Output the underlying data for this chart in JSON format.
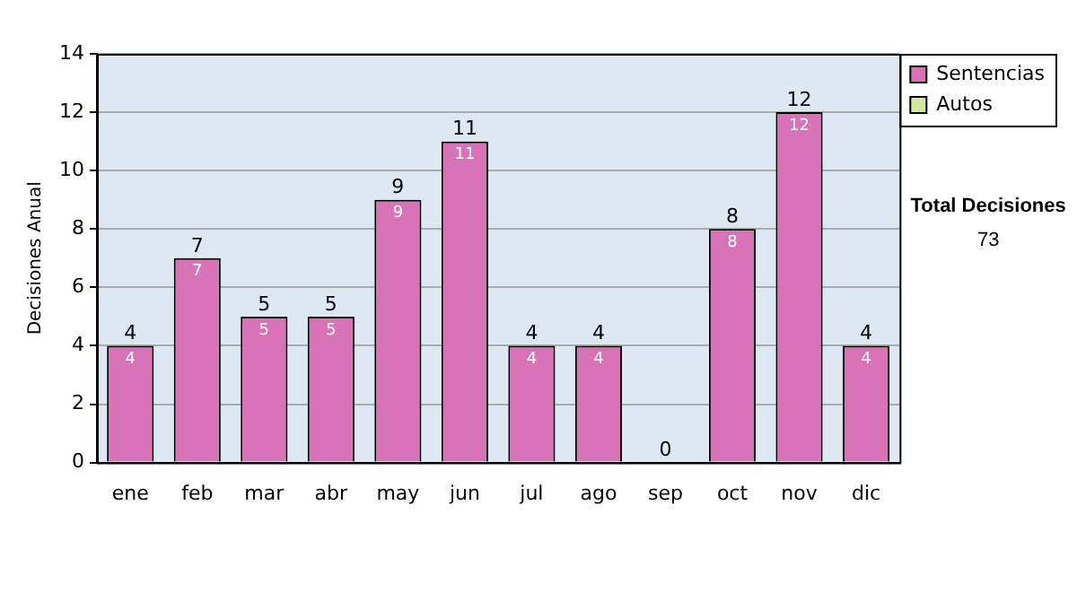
{
  "chart_data": {
    "type": "bar",
    "ylabel": "Decisiones Anual",
    "categories": [
      "ene",
      "feb",
      "mar",
      "abr",
      "may",
      "jun",
      "jul",
      "ago",
      "sep",
      "oct",
      "nov",
      "dic"
    ],
    "stacked": true,
    "series": [
      {
        "name": "Sentencias",
        "color": "#d873b8",
        "values": [
          4,
          7,
          5,
          5,
          9,
          11,
          4,
          4,
          0,
          8,
          12,
          4
        ],
        "value_labels": [
          "4",
          "7",
          "5",
          "5",
          "9",
          "11",
          "4",
          "4",
          null,
          "8",
          "12",
          "4"
        ]
      },
      {
        "name": "Autos",
        "color": "#d4e8a0",
        "values": [
          0,
          0,
          0,
          0,
          0,
          0,
          0,
          0,
          0,
          0,
          0,
          0
        ]
      }
    ],
    "totals": [
      "4",
      "7",
      "5",
      "5",
      "9",
      "11",
      "4",
      "4",
      "0",
      "8",
      "12",
      "4"
    ],
    "ylim": [
      0,
      14
    ],
    "yticks": [
      0,
      2,
      4,
      6,
      8,
      10,
      12,
      14
    ],
    "grid": "y",
    "legend": "right",
    "annotations": [
      "Total Decisiones",
      "73"
    ]
  }
}
